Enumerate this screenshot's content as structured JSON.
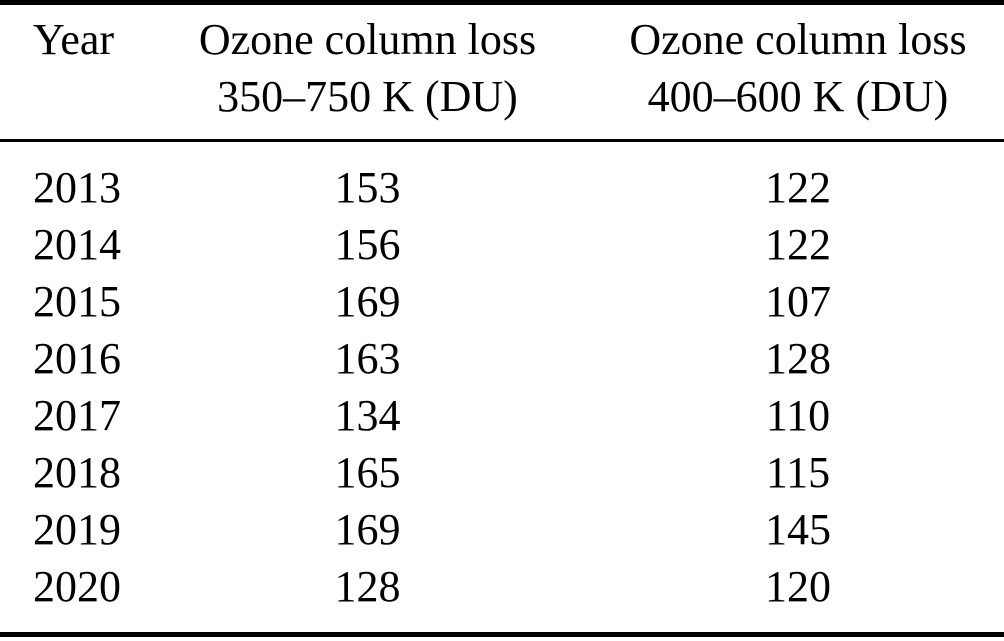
{
  "page": {
    "background_color": "#ffffff",
    "text_color": "#000000",
    "rule_color": "#000000"
  },
  "table": {
    "header": {
      "col1": "Year",
      "col2_line1": "Ozone column loss",
      "col2_line2": "350–750 K (DU)",
      "col3_line1": "Ozone column loss",
      "col3_line2": "400–600 K (DU)"
    },
    "rows": [
      {
        "year": "2013",
        "loss_350_750_du": "153",
        "loss_400_600_du": "122"
      },
      {
        "year": "2014",
        "loss_350_750_du": "156",
        "loss_400_600_du": "122"
      },
      {
        "year": "2015",
        "loss_350_750_du": "169",
        "loss_400_600_du": "107"
      },
      {
        "year": "2016",
        "loss_350_750_du": "163",
        "loss_400_600_du": "128"
      },
      {
        "year": "2017",
        "loss_350_750_du": "134",
        "loss_400_600_du": "110"
      },
      {
        "year": "2018",
        "loss_350_750_du": "165",
        "loss_400_600_du": "115"
      },
      {
        "year": "2019",
        "loss_350_750_du": "169",
        "loss_400_600_du": "145"
      },
      {
        "year": "2020",
        "loss_350_750_du": "128",
        "loss_400_600_du": "120"
      }
    ]
  },
  "chart_data": {
    "type": "table",
    "columns": [
      "Year",
      "Ozone column loss 350–750 K (DU)",
      "Ozone column loss 400–600 K (DU)"
    ],
    "rows": [
      [
        2013,
        153,
        122
      ],
      [
        2014,
        156,
        122
      ],
      [
        2015,
        169,
        107
      ],
      [
        2016,
        163,
        128
      ],
      [
        2017,
        134,
        110
      ],
      [
        2018,
        165,
        115
      ],
      [
        2019,
        169,
        145
      ],
      [
        2020,
        128,
        120
      ]
    ]
  }
}
